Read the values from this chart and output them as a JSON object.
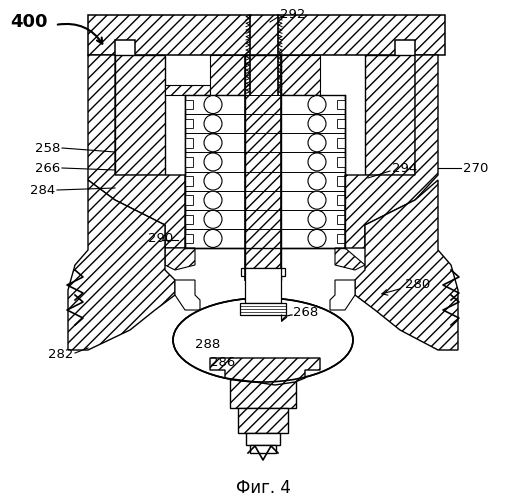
{
  "title": "Фиг. 4",
  "label_400": "400",
  "label_292": "292",
  "label_258": "258",
  "label_266": "266",
  "label_284": "284",
  "label_290": "290",
  "label_288": "288",
  "label_286": "286",
  "label_268": "268",
  "label_280": "280",
  "label_282": "282",
  "label_294": "294",
  "label_270": "270",
  "bg_color": "#ffffff",
  "line_color": "#000000",
  "figsize": [
    5.26,
    5.0
  ],
  "dpi": 100
}
